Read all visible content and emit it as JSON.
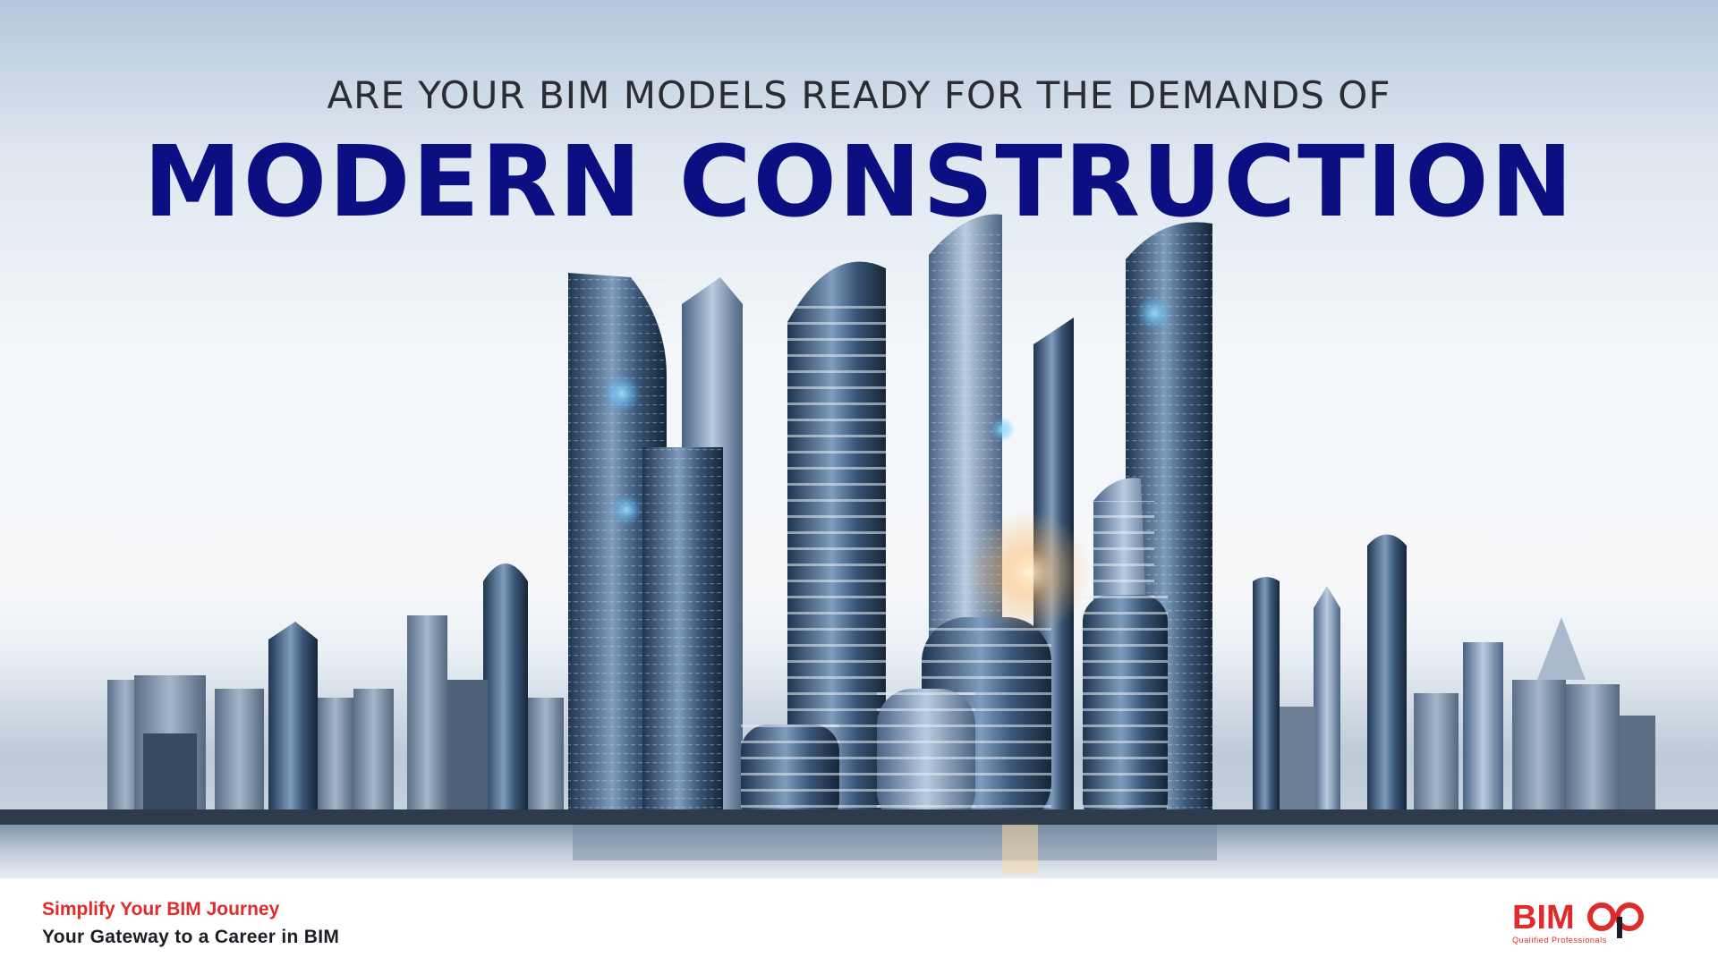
{
  "hero": {
    "subheading": "ARE YOUR BIM MODELS READY FOR THE DEMANDS OF",
    "headline": "MODERN CONSTRUCTION",
    "image": "futuristic-city-skyline-over-water"
  },
  "footer": {
    "tagline": "Simplify Your BIM Journey",
    "gateway": "Your Gateway to a Career in BIM"
  },
  "brand": {
    "logo_text": "BIMQP",
    "logo_subtext": "Qualified Professionals",
    "primary_color": "#0c0f82",
    "accent_color": "#e02b2b"
  }
}
